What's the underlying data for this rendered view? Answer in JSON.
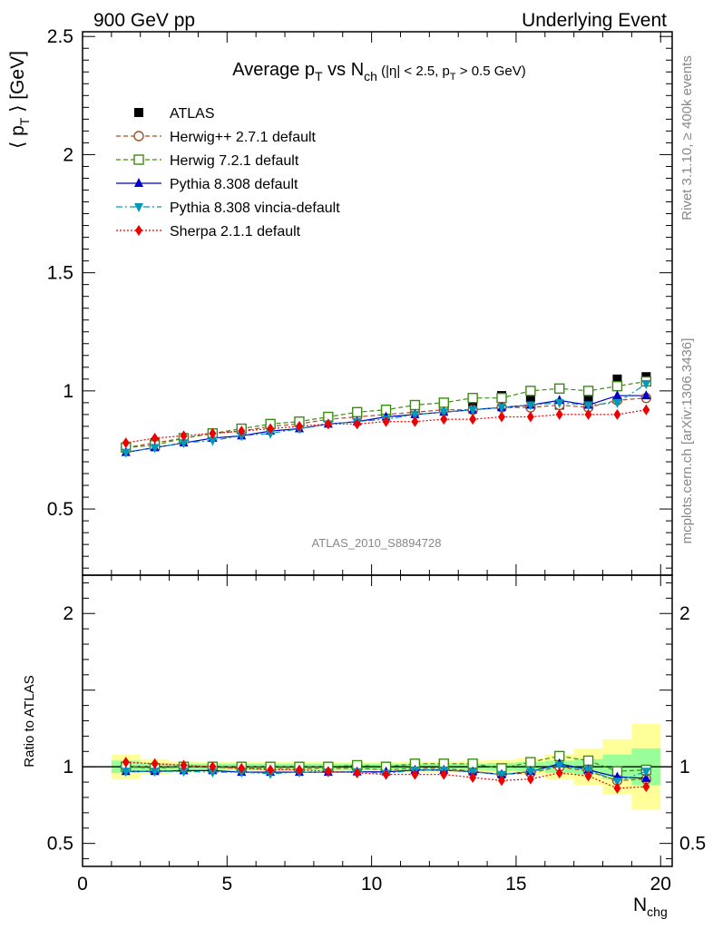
{
  "header": {
    "left": "900 GeV pp",
    "right": "Underlying Event"
  },
  "side_text": {
    "top": "Rivet 3.1.10, ≥ 400k events",
    "bottom": "mcplots.cern.ch [arXiv:1306.3436]"
  },
  "analysis_tag": "ATLAS_2010_S8894728",
  "colors": {
    "data": "#000000",
    "herwigpp": "#a0522d",
    "herwig7": "#3c8c14",
    "pythia": "#0000cc",
    "vincia": "#0099bb",
    "sherpa": "#ee0000",
    "band_inner": "#99ff99",
    "band_outer": "#ffff99"
  },
  "chart_data": {
    "type": "scatter",
    "title": {
      "main": "Average p",
      "main_sub": "T",
      "vs": " vs N",
      "vs_sub": "ch",
      "cut_open": " (|η| < 2.5, p",
      "cut_sub": "T",
      "cut_close": " > 0.5 GeV)"
    },
    "ylabel": {
      "open": "⟨ p",
      "sub": "T",
      "close": " ⟩ [GeV]"
    },
    "xlabel": {
      "main": "N",
      "sub": "chg"
    },
    "ratio_ylabel": "Ratio to ATLAS",
    "xlim": [
      0,
      20.4
    ],
    "ylim": [
      0.22,
      2.52
    ],
    "ratio_ylim": [
      0.35,
      2.25
    ],
    "x_ticks": [
      "0",
      "5",
      "10",
      "15",
      "20"
    ],
    "x_tick_values": [
      0,
      5,
      10,
      15,
      20
    ],
    "y_ticks": [
      "0.5",
      "1",
      "1.5",
      "2",
      "2.5"
    ],
    "y_tick_values": [
      0.5,
      1,
      1.5,
      2,
      2.5
    ],
    "ratio_ticks": [
      "0.5",
      "1",
      "2"
    ],
    "ratio_tick_values": [
      0.5,
      1,
      2
    ],
    "legend_position": "top-left",
    "x": [
      1.5,
      2.5,
      3.5,
      4.5,
      5.5,
      6.5,
      7.5,
      8.5,
      9.5,
      10.5,
      11.5,
      12.5,
      13.5,
      14.5,
      15.5,
      16.5,
      17.5,
      18.5,
      19.5
    ],
    "bin_edges": [
      1,
      2,
      3,
      4,
      5,
      6,
      7,
      8,
      9,
      10,
      11,
      12,
      13,
      14,
      15,
      16,
      17,
      18,
      19,
      20
    ],
    "series": [
      {
        "key": "data",
        "name": "ATLAS",
        "marker": "square",
        "values": [
          0.76,
          0.78,
          0.8,
          0.82,
          0.84,
          0.86,
          0.87,
          0.89,
          0.9,
          0.92,
          0.92,
          0.93,
          0.95,
          0.98,
          0.97,
          0.94,
          0.96,
          1.05,
          1.06
        ]
      },
      {
        "key": "herwigpp",
        "name": "Herwig++ 2.7.1 default",
        "marker": "circle-open",
        "dash": "5,3",
        "values": [
          0.76,
          0.78,
          0.8,
          0.82,
          0.83,
          0.85,
          0.86,
          0.88,
          0.89,
          0.9,
          0.91,
          0.92,
          0.92,
          0.93,
          0.93,
          0.94,
          0.93,
          0.96,
          0.97
        ]
      },
      {
        "key": "herwig7",
        "name": "Herwig 7.2.1 default",
        "marker": "square-open",
        "dash": "5,3",
        "values": [
          0.76,
          0.77,
          0.8,
          0.82,
          0.84,
          0.86,
          0.87,
          0.89,
          0.91,
          0.92,
          0.94,
          0.95,
          0.97,
          0.97,
          1.0,
          1.01,
          1.0,
          1.02,
          1.04
        ]
      },
      {
        "key": "pythia",
        "name": "Pythia 8.308 default",
        "marker": "triangle-up",
        "dash": "",
        "values": [
          0.74,
          0.76,
          0.78,
          0.8,
          0.81,
          0.83,
          0.84,
          0.86,
          0.87,
          0.89,
          0.9,
          0.91,
          0.92,
          0.93,
          0.94,
          0.96,
          0.94,
          0.98,
          0.98
        ]
      },
      {
        "key": "vincia",
        "name": "Pythia 8.308 vincia-default",
        "marker": "triangle-down",
        "dash": "7,3,2,3",
        "values": [
          0.74,
          0.76,
          0.78,
          0.79,
          0.81,
          0.82,
          0.84,
          0.86,
          0.87,
          0.88,
          0.9,
          0.91,
          0.92,
          0.93,
          0.94,
          0.95,
          0.94,
          0.95,
          1.03
        ]
      },
      {
        "key": "sherpa",
        "name": "Sherpa 2.1.1 default",
        "marker": "diamond",
        "dash": "2,2",
        "values": [
          0.78,
          0.8,
          0.81,
          0.82,
          0.83,
          0.84,
          0.85,
          0.86,
          0.86,
          0.87,
          0.87,
          0.88,
          0.88,
          0.89,
          0.89,
          0.9,
          0.9,
          0.9,
          0.92
        ]
      }
    ],
    "ratio_series": [
      {
        "key": "herwigpp",
        "values": [
          1.0,
          1.0,
          1.0,
          1.0,
          0.99,
          0.99,
          0.99,
          0.99,
          0.99,
          0.98,
          0.99,
          0.99,
          0.97,
          0.95,
          0.96,
          1.0,
          0.97,
          0.91,
          0.92
        ]
      },
      {
        "key": "herwig7",
        "values": [
          1.0,
          0.99,
          1.0,
          1.0,
          1.0,
          1.0,
          1.0,
          1.0,
          1.01,
          1.0,
          1.02,
          1.02,
          1.02,
          0.99,
          1.03,
          1.07,
          1.04,
          0.97,
          0.98
        ]
      },
      {
        "key": "pythia",
        "values": [
          0.97,
          0.97,
          0.975,
          0.975,
          0.965,
          0.965,
          0.965,
          0.965,
          0.967,
          0.967,
          0.978,
          0.978,
          0.968,
          0.949,
          0.969,
          1.02,
          0.98,
          0.933,
          0.925
        ]
      },
      {
        "key": "vincia",
        "values": [
          0.97,
          0.97,
          0.97,
          0.965,
          0.965,
          0.955,
          0.965,
          0.965,
          0.967,
          0.957,
          0.978,
          0.978,
          0.968,
          0.949,
          0.969,
          1.01,
          0.98,
          0.905,
          0.97
        ]
      },
      {
        "key": "sherpa",
        "values": [
          1.03,
          1.02,
          1.01,
          1.0,
          0.99,
          0.98,
          0.98,
          0.97,
          0.96,
          0.95,
          0.95,
          0.95,
          0.93,
          0.91,
          0.92,
          0.96,
          0.94,
          0.86,
          0.87
        ]
      }
    ],
    "band_inner": [
      0.04,
      0.025,
      0.02,
      0.02,
      0.02,
      0.02,
      0.02,
      0.02,
      0.02,
      0.02,
      0.02,
      0.02,
      0.02,
      0.025,
      0.03,
      0.04,
      0.05,
      0.08,
      0.12
    ],
    "band_outer": [
      0.08,
      0.05,
      0.035,
      0.03,
      0.03,
      0.03,
      0.03,
      0.03,
      0.03,
      0.03,
      0.035,
      0.035,
      0.04,
      0.045,
      0.055,
      0.08,
      0.12,
      0.18,
      0.28
    ]
  }
}
